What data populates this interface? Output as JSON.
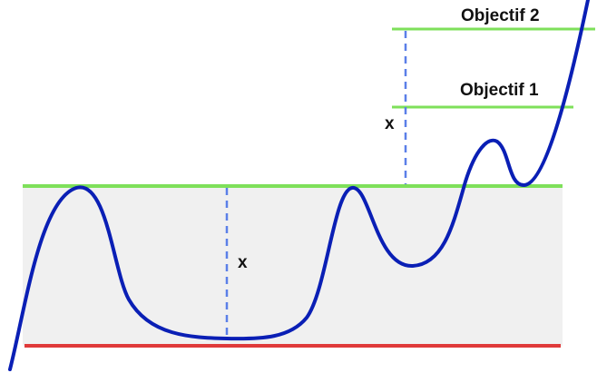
{
  "labels": {
    "objective_2": "Objectif 2",
    "objective_1": "Objectif 1",
    "distance_upper": "x",
    "distance_lower": "x"
  },
  "colors": {
    "range_fill": "#f0f0f0",
    "resistance_line": "#7ee05a",
    "objective_line": "#7ee05a",
    "support_line": "#e03a3a",
    "price_curve": "#0a1fb5",
    "measure_line": "#5b7fe8",
    "text": "#111111",
    "background": "#ffffff"
  }
}
